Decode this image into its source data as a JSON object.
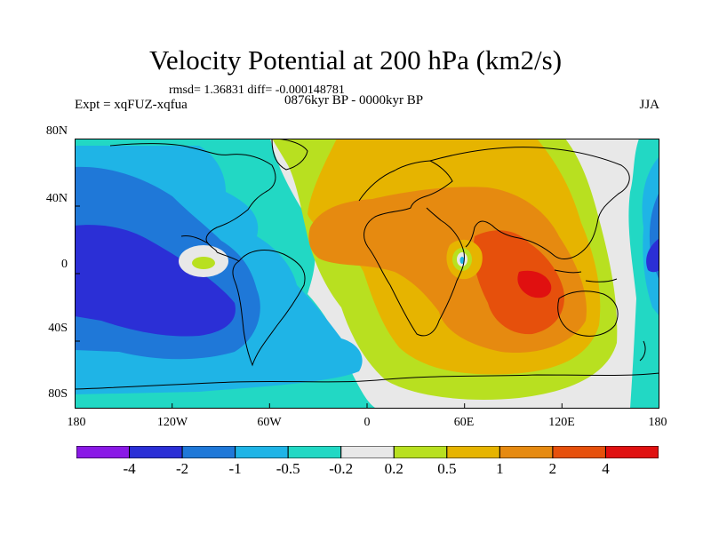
{
  "title": "Velocity Potential at 200 hPa (km2/s)",
  "stats": "rmsd= 1.36831 diff= -0.000148781",
  "experiment_label": "Expt = xqFUZ-xqfua",
  "period_label": "0876kyr BP - 0000kyr BP",
  "season_label": "JJA",
  "map": {
    "lat_ticks": [
      "80N",
      "40N",
      "0",
      "40S",
      "80S"
    ],
    "lon_ticks": [
      "180",
      "120W",
      "60W",
      "0",
      "60E",
      "120E",
      "180"
    ]
  },
  "colorbar": {
    "colors": [
      "#8a19e6",
      "#2b2fd6",
      "#1f78d8",
      "#1fb4e6",
      "#22d8c4",
      "#e8e8e8",
      "#b8e020",
      "#e6b400",
      "#e68a10",
      "#e6500c",
      "#e01010"
    ],
    "labels": [
      "-4",
      "-2",
      "-1",
      "-0.5",
      "-0.2",
      "0.2",
      "0.5",
      "1",
      "2",
      "4"
    ]
  }
}
